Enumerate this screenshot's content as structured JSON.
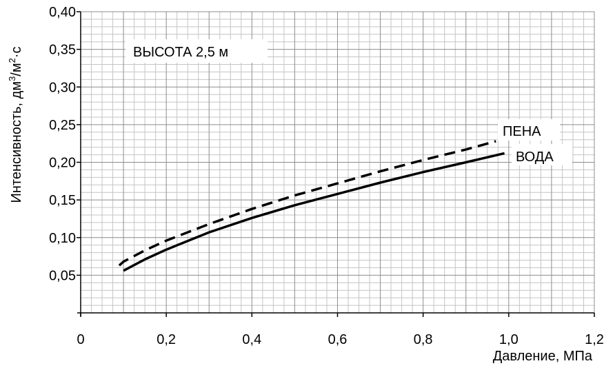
{
  "chart_data": {
    "type": "line",
    "title": "",
    "xlabel": "Давление, МПа",
    "ylabel": "Интенсивность, дм³/м²·с",
    "ylabel_parts": [
      "Интенсивность, дм",
      "3",
      "/м",
      "2",
      "·с"
    ],
    "xlim": [
      0,
      1.2
    ],
    "ylim": [
      0,
      0.4
    ],
    "x_ticks": [
      "0",
      "0,2",
      "0,4",
      "0,6",
      "0,8",
      "1,0",
      "1,2"
    ],
    "y_ticks": [
      "0,05",
      "0,10",
      "0,15",
      "0,20",
      "0,25",
      "0,30",
      "0,35",
      "0,40"
    ],
    "grid": true,
    "annotation": "ВЫСОТА 2,5 м",
    "series": [
      {
        "name": "ПЕНА",
        "style": "dashed",
        "x": [
          0.09,
          0.1,
          0.15,
          0.2,
          0.3,
          0.4,
          0.5,
          0.6,
          0.7,
          0.8,
          0.9,
          0.97
        ],
        "y": [
          0.063,
          0.068,
          0.083,
          0.096,
          0.118,
          0.138,
          0.156,
          0.172,
          0.188,
          0.203,
          0.217,
          0.228
        ]
      },
      {
        "name": "ВОДА",
        "style": "solid",
        "x": [
          0.1,
          0.15,
          0.2,
          0.3,
          0.4,
          0.5,
          0.6,
          0.7,
          0.8,
          0.9,
          0.99
        ],
        "y": [
          0.056,
          0.071,
          0.084,
          0.107,
          0.126,
          0.143,
          0.158,
          0.173,
          0.187,
          0.2,
          0.212
        ]
      }
    ],
    "colors": {
      "line": "#000000",
      "grid_major": "#8c8c8c",
      "grid_minor": "#c4c4c4"
    }
  }
}
